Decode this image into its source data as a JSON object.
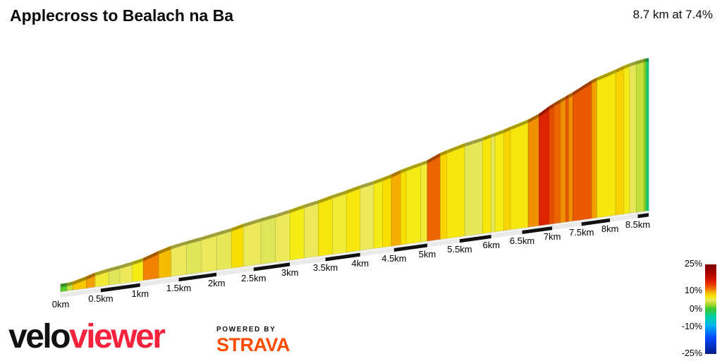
{
  "header": {
    "title": "Applecross to Bealach na Ba",
    "stats": "8.7 km at 7.4%"
  },
  "footer": {
    "logo_velo": "velo",
    "logo_viewer": "viewer",
    "powered_by": "POWERED BY",
    "strava": "STRAVA"
  },
  "colors": {
    "logo_red": "#f5233d",
    "strava_orange": "#fc4c02",
    "text": "#0b0b0b",
    "scale_bar_dark": "#111111",
    "scale_bar_light": "#eaeaea",
    "base_face": "#f4f4f0"
  },
  "legend": {
    "tick_labels": [
      "25%",
      "10%",
      "0%",
      "-10%",
      "-25%"
    ],
    "tick_values": [
      25,
      10,
      0,
      -10,
      -25
    ],
    "range": [
      -25,
      25
    ]
  },
  "chart_data": {
    "type": "area",
    "title": "Applecross to Bealach na Ba",
    "subtitle": "8.7 km at 7.4%",
    "x_unit": "km",
    "x_range": [
      0,
      8.7
    ],
    "total_km": 8.7,
    "avg_gradient_pct": 7.4,
    "x_tick_values": [
      0,
      0.5,
      1,
      1.5,
      2,
      2.5,
      3,
      3.5,
      4,
      4.5,
      5,
      5.5,
      6,
      6.5,
      7,
      7.5,
      8,
      8.5
    ],
    "x_tick_labels": [
      "0km",
      "0.5km",
      "1km",
      "1.5km",
      "2km",
      "2.5km",
      "3km",
      "3.5km",
      "4km",
      "4.5km",
      "5km",
      "5.5km",
      "6km",
      "6.5km",
      "7km",
      "7.5km",
      "8km",
      "8.5km"
    ],
    "segments_format": [
      "start_km",
      "end_km",
      "gradient_pct"
    ],
    "segments": [
      [
        0.0,
        0.08,
        1
      ],
      [
        0.08,
        0.15,
        3.5
      ],
      [
        0.15,
        0.32,
        8.5
      ],
      [
        0.32,
        0.43,
        10
      ],
      [
        0.43,
        0.6,
        6
      ],
      [
        0.6,
        0.74,
        4.5
      ],
      [
        0.74,
        0.9,
        5.5
      ],
      [
        0.9,
        1.04,
        6.5
      ],
      [
        1.04,
        1.24,
        11
      ],
      [
        1.24,
        1.4,
        9
      ],
      [
        1.4,
        1.6,
        5.5
      ],
      [
        1.6,
        1.8,
        4.5
      ],
      [
        1.8,
        2.0,
        5.5
      ],
      [
        2.0,
        2.2,
        5
      ],
      [
        2.2,
        2.36,
        7.5
      ],
      [
        2.36,
        2.6,
        5.5
      ],
      [
        2.6,
        2.8,
        4.5
      ],
      [
        2.8,
        3.0,
        5.5
      ],
      [
        3.0,
        3.2,
        6.5
      ],
      [
        3.2,
        3.4,
        5.5
      ],
      [
        3.4,
        3.6,
        7
      ],
      [
        3.6,
        3.8,
        6
      ],
      [
        3.8,
        4.0,
        7
      ],
      [
        4.0,
        4.2,
        5.5
      ],
      [
        4.2,
        4.33,
        6.5
      ],
      [
        4.33,
        4.46,
        7.5
      ],
      [
        4.46,
        4.6,
        9.5
      ],
      [
        4.6,
        4.68,
        7.5
      ],
      [
        4.68,
        4.9,
        6.5
      ],
      [
        4.9,
        5.0,
        6
      ],
      [
        5.0,
        5.2,
        12
      ],
      [
        5.2,
        5.3,
        8
      ],
      [
        5.3,
        5.58,
        7
      ],
      [
        5.58,
        5.86,
        5
      ],
      [
        5.86,
        6.0,
        7
      ],
      [
        6.0,
        6.06,
        5
      ],
      [
        6.06,
        6.2,
        6.5
      ],
      [
        6.2,
        6.31,
        8
      ],
      [
        6.31,
        6.6,
        7
      ],
      [
        6.6,
        6.78,
        10.5
      ],
      [
        6.78,
        6.95,
        15.5
      ],
      [
        6.95,
        7.03,
        13
      ],
      [
        7.03,
        7.14,
        12
      ],
      [
        7.14,
        7.23,
        10.5
      ],
      [
        7.23,
        7.28,
        12.5
      ],
      [
        7.28,
        7.35,
        10.5
      ],
      [
        7.35,
        7.68,
        12.5
      ],
      [
        7.68,
        7.77,
        10
      ],
      [
        7.77,
        8.1,
        7
      ],
      [
        8.1,
        8.25,
        8
      ],
      [
        8.25,
        8.35,
        6.5
      ],
      [
        8.35,
        8.47,
        5
      ],
      [
        8.47,
        8.62,
        3.5
      ],
      [
        8.62,
        8.66,
        1.5
      ],
      [
        8.66,
        8.7,
        -2.5
      ]
    ],
    "gradient_color_stops": [
      [
        -25,
        "#001c86"
      ],
      [
        -16,
        "#0048ff"
      ],
      [
        -9,
        "#00b4f0"
      ],
      [
        -4,
        "#00d2a0"
      ],
      [
        -1,
        "#30c84a"
      ],
      [
        0.5,
        "#3ecb33"
      ],
      [
        2,
        "#8fd42a"
      ],
      [
        3.5,
        "#c4de3a"
      ],
      [
        4.5,
        "#dfe65a"
      ],
      [
        5.5,
        "#ece95a"
      ],
      [
        6.5,
        "#f5ec16"
      ],
      [
        7.5,
        "#f8df00"
      ],
      [
        8.5,
        "#f6c800"
      ],
      [
        9.5,
        "#f4ad00"
      ],
      [
        10.5,
        "#f19000"
      ],
      [
        11.5,
        "#ee7300"
      ],
      [
        12.5,
        "#ea5800"
      ],
      [
        13.5,
        "#e64200"
      ],
      [
        15,
        "#e02800"
      ],
      [
        17,
        "#cc1400"
      ],
      [
        20,
        "#ac0400"
      ],
      [
        25,
        "#7a0000"
      ]
    ],
    "legend_position": "right",
    "grid": false
  }
}
